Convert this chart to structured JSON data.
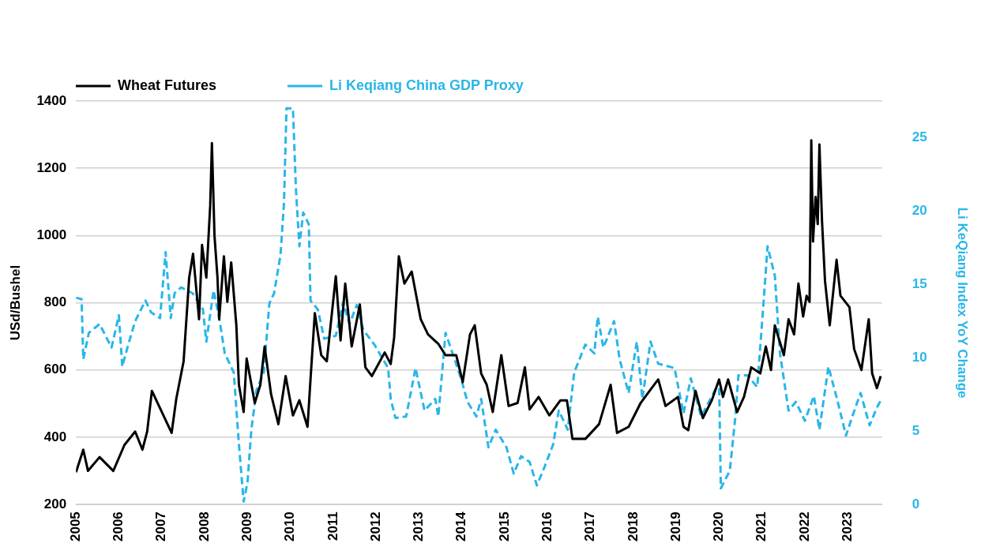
{
  "chart_data": {
    "type": "line",
    "ylabel": "USd/Bushel",
    "y2label": "Li KeQiang Index YoY Change",
    "xlim": [
      2005,
      2023.8
    ],
    "xticks": [
      2005,
      2006,
      2007,
      2008,
      2009,
      2010,
      2011,
      2012,
      2013,
      2014,
      2015,
      2016,
      2017,
      2018,
      2019,
      2020,
      2021,
      2022,
      2023
    ],
    "ylim": [
      200,
      1400
    ],
    "yticks": [
      200,
      400,
      600,
      800,
      1000,
      1200,
      1400
    ],
    "y2lim": [
      0,
      27.5
    ],
    "y2ticks": [
      0,
      5,
      10,
      15,
      20,
      25
    ],
    "grid": "y",
    "legend": "top left",
    "marker": "none",
    "series": [
      {
        "name": "Wheat Futures",
        "color": "#000000",
        "line_style": "solid",
        "x": [
          2005.0,
          2005.17,
          2005.28,
          2005.55,
          2005.87,
          2006.13,
          2006.38,
          2006.55,
          2006.66,
          2006.77,
          2007.04,
          2007.23,
          2007.34,
          2007.51,
          2007.64,
          2007.73,
          2007.87,
          2007.94,
          2008.04,
          2008.13,
          2008.17,
          2008.23,
          2008.3,
          2008.34,
          2008.45,
          2008.53,
          2008.62,
          2008.74,
          2008.8,
          2008.91,
          2008.98,
          2009.17,
          2009.3,
          2009.4,
          2009.55,
          2009.72,
          2009.89,
          2010.06,
          2010.21,
          2010.4,
          2010.47,
          2010.57,
          2010.72,
          2010.85,
          2011.06,
          2011.17,
          2011.28,
          2011.43,
          2011.62,
          2011.75,
          2011.9,
          2012.2,
          2012.34,
          2012.42,
          2012.53,
          2012.66,
          2012.83,
          2013.04,
          2013.21,
          2013.45,
          2013.62,
          2013.87,
          2014.02,
          2014.19,
          2014.3,
          2014.45,
          2014.58,
          2014.72,
          2014.92,
          2015.09,
          2015.3,
          2015.47,
          2015.58,
          2015.79,
          2016.04,
          2016.3,
          2016.45,
          2016.58,
          2016.88,
          2017.2,
          2017.47,
          2017.62,
          2017.89,
          2018.17,
          2018.38,
          2018.58,
          2018.75,
          2019.04,
          2019.17,
          2019.28,
          2019.45,
          2019.62,
          2019.83,
          2020.0,
          2020.09,
          2020.21,
          2020.42,
          2020.58,
          2020.75,
          2020.96,
          2021.09,
          2021.21,
          2021.3,
          2021.51,
          2021.62,
          2021.75,
          2021.85,
          2021.96,
          2022.04,
          2022.11,
          2022.15,
          2022.19,
          2022.25,
          2022.3,
          2022.34,
          2022.4,
          2022.47,
          2022.58,
          2022.74,
          2022.83,
          2023.04,
          2023.15,
          2023.32,
          2023.49,
          2023.57,
          2023.68,
          2023.77
        ],
        "values": [
          296,
          363,
          300,
          341,
          300,
          377,
          417,
          363,
          417,
          538,
          465,
          413,
          515,
          626,
          875,
          946,
          751,
          972,
          875,
          1088,
          1275,
          1000,
          875,
          751,
          938,
          803,
          920,
          733,
          556,
          475,
          634,
          502,
          556,
          670,
          528,
          439,
          582,
          465,
          510,
          431,
          572,
          769,
          644,
          626,
          879,
          688,
          857,
          670,
          795,
          608,
          582,
          652,
          618,
          696,
          938,
          857,
          893,
          751,
          706,
          678,
          644,
          644,
          564,
          706,
          733,
          590,
          556,
          475,
          644,
          493,
          502,
          608,
          483,
          520,
          465,
          510,
          510,
          395,
          395,
          439,
          556,
          413,
          431,
          502,
          538,
          572,
          493,
          520,
          431,
          421,
          538,
          457,
          510,
          572,
          520,
          572,
          475,
          520,
          608,
          590,
          670,
          600,
          733,
          644,
          751,
          706,
          857,
          759,
          821,
          803,
          1283,
          982,
          1115,
          1034,
          1271,
          1044,
          865,
          733,
          928,
          821,
          787,
          662,
          600,
          751,
          590,
          546,
          582
        ]
      },
      {
        "name": "Li Keqiang China GDP Proxy",
        "color": "#29b6e8",
        "line_style": "dashed",
        "axis": "y2",
        "x": [
          2005.0,
          2005.13,
          2005.17,
          2005.3,
          2005.55,
          2005.83,
          2006.0,
          2006.08,
          2006.2,
          2006.38,
          2006.62,
          2006.75,
          2006.96,
          2007.09,
          2007.21,
          2007.3,
          2007.45,
          2007.72,
          2007.96,
          2008.04,
          2008.21,
          2008.34,
          2008.47,
          2008.68,
          2008.8,
          2008.91,
          2009.0,
          2009.09,
          2009.21,
          2009.38,
          2009.51,
          2009.62,
          2009.77,
          2009.85,
          2009.91,
          2010.06,
          2010.13,
          2010.21,
          2010.3,
          2010.43,
          2010.47,
          2010.64,
          2010.79,
          2011.06,
          2011.23,
          2011.38,
          2011.55,
          2011.7,
          2011.96,
          2012.28,
          2012.34,
          2012.45,
          2012.7,
          2012.92,
          2013.13,
          2013.38,
          2013.45,
          2013.62,
          2013.83,
          2014.0,
          2014.13,
          2014.34,
          2014.45,
          2014.62,
          2014.79,
          2015.04,
          2015.21,
          2015.38,
          2015.58,
          2015.75,
          2015.92,
          2016.13,
          2016.26,
          2016.47,
          2016.62,
          2016.88,
          2017.09,
          2017.17,
          2017.3,
          2017.55,
          2017.68,
          2017.89,
          2018.08,
          2018.21,
          2018.4,
          2018.58,
          2018.96,
          2019.17,
          2019.34,
          2019.58,
          2019.87,
          2020.0,
          2020.04,
          2020.25,
          2020.38,
          2020.45,
          2020.66,
          2020.89,
          2021.04,
          2021.13,
          2021.3,
          2021.42,
          2021.62,
          2021.79,
          2022.0,
          2022.21,
          2022.34,
          2022.55,
          2022.75,
          2022.96,
          2023.13,
          2023.3,
          2023.51,
          2023.68,
          2023.79
        ],
        "values": [
          14.1,
          14.0,
          9.9,
          11.7,
          12.3,
          10.7,
          12.9,
          9.4,
          10.7,
          12.5,
          13.9,
          13.1,
          12.7,
          17.2,
          12.7,
          14.4,
          14.8,
          14.4,
          13.3,
          11.1,
          14.6,
          12.7,
          10.3,
          9.0,
          4.1,
          0.2,
          1.5,
          5.1,
          7.8,
          9.0,
          13.7,
          14.4,
          17.0,
          20.5,
          27.0,
          27.0,
          21.5,
          17.6,
          19.9,
          19.1,
          13.9,
          13.3,
          11.3,
          11.5,
          13.8,
          12.3,
          13.6,
          11.9,
          10.9,
          9.3,
          7.2,
          5.9,
          6.0,
          9.3,
          6.4,
          7.2,
          6.0,
          11.7,
          9.9,
          8.4,
          7.0,
          6.0,
          7.2,
          3.9,
          5.1,
          3.9,
          2.1,
          3.3,
          2.9,
          1.3,
          2.5,
          4.1,
          6.4,
          5.1,
          9.0,
          10.9,
          10.3,
          12.8,
          10.7,
          12.5,
          9.9,
          7.6,
          11.1,
          7.2,
          11.1,
          9.6,
          9.3,
          6.2,
          8.6,
          6.0,
          7.6,
          8.4,
          1.1,
          2.3,
          6.0,
          8.8,
          8.8,
          8.0,
          13.9,
          17.6,
          15.6,
          10.3,
          6.4,
          7.0,
          5.7,
          7.4,
          5.1,
          9.4,
          7.2,
          4.7,
          6.2,
          7.6,
          5.4,
          6.6,
          7.2
        ]
      }
    ]
  }
}
